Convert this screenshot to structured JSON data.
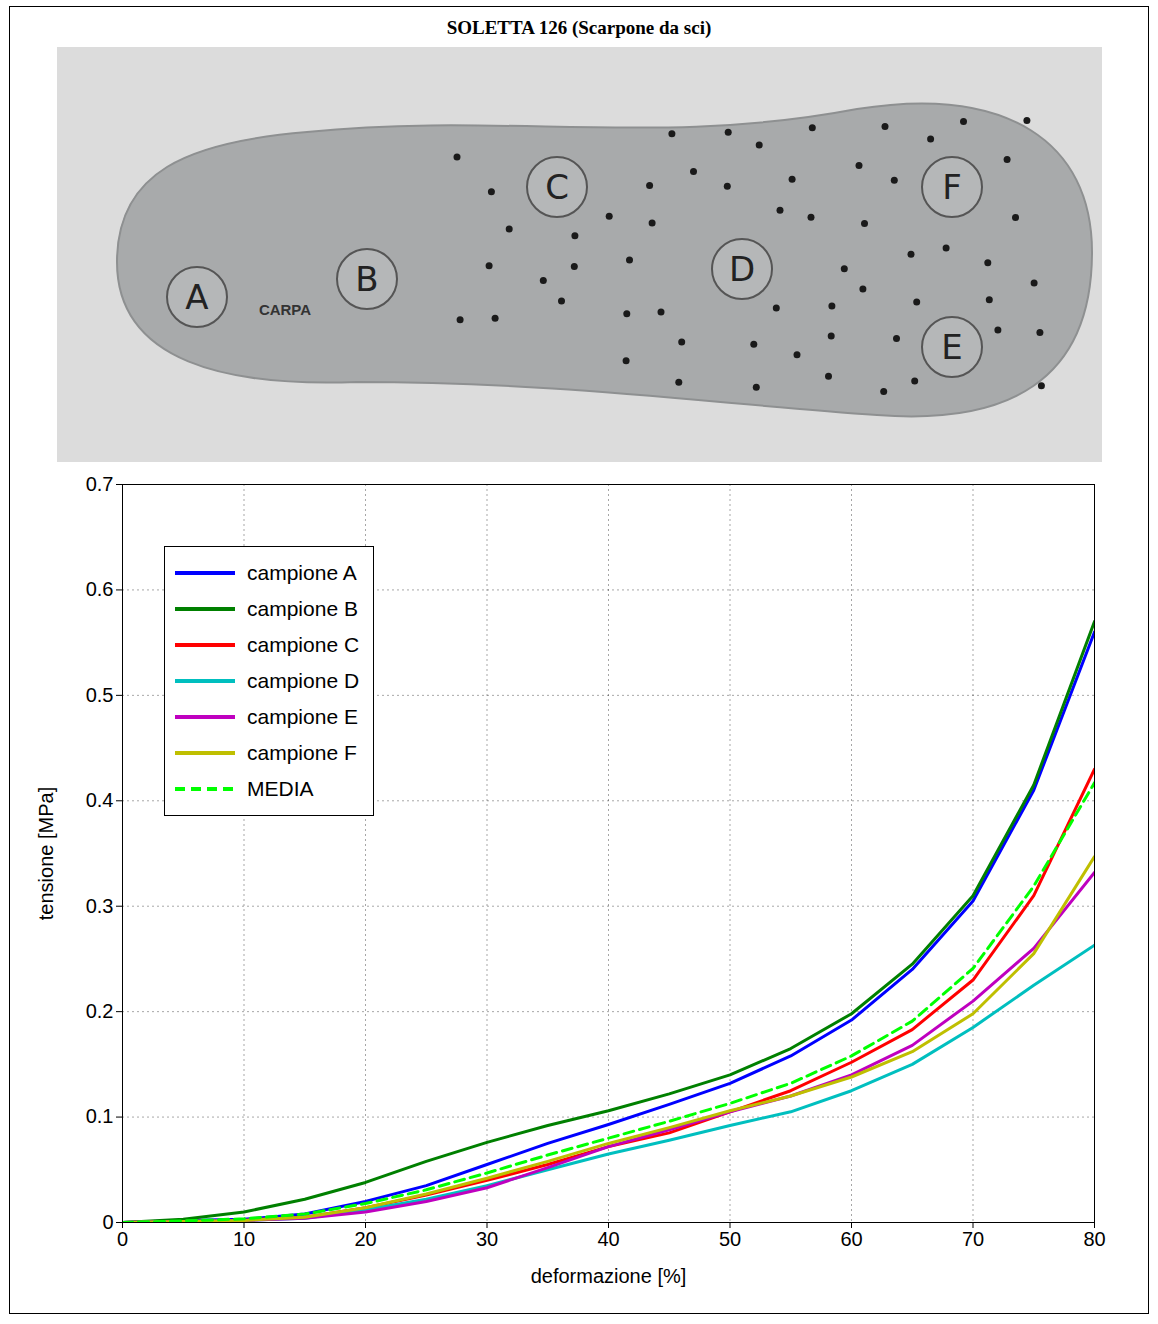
{
  "photo": {
    "labels": [
      "A",
      "B",
      "C",
      "D",
      "E",
      "F"
    ],
    "logo": "CARPA"
  },
  "chart_data": {
    "type": "line",
    "title": "SOLETTA 126 (Scarpone da sci)",
    "x_label": "deformazione [%]",
    "y_label": "tensione [MPa]",
    "x": [
      0,
      5,
      10,
      15,
      20,
      25,
      30,
      35,
      40,
      45,
      50,
      55,
      60,
      65,
      70,
      75,
      80
    ],
    "series": [
      {
        "name": "campione A",
        "color": "#0000ff",
        "values": [
          0,
          0.002,
          0.003,
          0.008,
          0.02,
          0.035,
          0.055,
          0.075,
          0.093,
          0.112,
          0.132,
          0.158,
          0.192,
          0.24,
          0.305,
          0.41,
          0.56
        ]
      },
      {
        "name": "campione B",
        "color": "#008000",
        "values": [
          0,
          0.003,
          0.01,
          0.022,
          0.038,
          0.058,
          0.076,
          0.092,
          0.106,
          0.122,
          0.14,
          0.165,
          0.198,
          0.245,
          0.31,
          0.415,
          0.57
        ]
      },
      {
        "name": "campione C",
        "color": "#ff0000",
        "values": [
          0,
          0.001,
          0.002,
          0.005,
          0.014,
          0.026,
          0.04,
          0.055,
          0.072,
          0.085,
          0.105,
          0.125,
          0.152,
          0.183,
          0.23,
          0.31,
          0.43
        ]
      },
      {
        "name": "campione D",
        "color": "#00bfbf",
        "values": [
          0,
          0.001,
          0.002,
          0.004,
          0.012,
          0.022,
          0.035,
          0.05,
          0.065,
          0.078,
          0.092,
          0.105,
          0.125,
          0.15,
          0.185,
          0.225,
          0.263
        ]
      },
      {
        "name": "campione E",
        "color": "#bf00bf",
        "values": [
          0,
          0.001,
          0.002,
          0.004,
          0.01,
          0.02,
          0.033,
          0.052,
          0.072,
          0.088,
          0.105,
          0.12,
          0.14,
          0.168,
          0.21,
          0.26,
          0.332
        ]
      },
      {
        "name": "campione F",
        "color": "#bfbf00",
        "values": [
          0,
          0.001,
          0.002,
          0.005,
          0.014,
          0.027,
          0.042,
          0.058,
          0.075,
          0.09,
          0.106,
          0.12,
          0.138,
          0.162,
          0.198,
          0.255,
          0.347
        ]
      },
      {
        "name": "MEDIA",
        "color": "#00ff00",
        "line_style": "dashed",
        "values": [
          0,
          0.0015,
          0.0035,
          0.008,
          0.018,
          0.031,
          0.047,
          0.064,
          0.08,
          0.096,
          0.113,
          0.132,
          0.158,
          0.191,
          0.241,
          0.319,
          0.417
        ]
      }
    ],
    "xlim": [
      0,
      80
    ],
    "xticks": [
      0,
      10,
      20,
      30,
      40,
      50,
      60,
      70,
      80
    ],
    "ylim": [
      0,
      0.7
    ],
    "yticks": [
      0,
      0.1,
      0.2,
      0.3,
      0.4,
      0.5,
      0.6,
      0.7
    ],
    "grid": true,
    "legend": "upper left"
  }
}
